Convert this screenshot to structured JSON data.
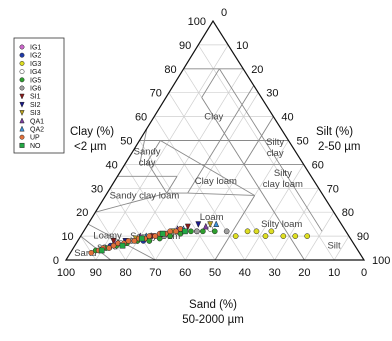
{
  "chart_data": {
    "type": "scatter",
    "subtype": "ternary",
    "axes": {
      "clay": {
        "label": "Clay (%)",
        "sublabel": "<2 µm",
        "ticks": [
          0,
          10,
          20,
          30,
          40,
          50,
          60,
          70,
          80,
          90,
          100
        ]
      },
      "silt": {
        "label": "Silt (%)",
        "sublabel": "2-50 µm",
        "ticks": [
          10,
          20,
          30,
          40,
          50,
          60,
          70,
          80,
          90,
          100
        ]
      },
      "sand": {
        "label": "Sand (%)",
        "sublabel": "50-2000 µm",
        "ticks": [
          100,
          90,
          80,
          70,
          60,
          50,
          40,
          30,
          20,
          10,
          0
        ]
      }
    },
    "apex_label": "0",
    "grid": true,
    "classes": [
      {
        "name": "Clay",
        "lines": [
          "Clay"
        ],
        "sand": 20,
        "silt": 20
      },
      {
        "name": "Silty clay",
        "lines": [
          "Silty",
          "clay"
        ],
        "sand": 6,
        "silt": 47
      },
      {
        "name": "Sandy clay",
        "lines": [
          "Sandy",
          "clay"
        ],
        "sand": 51,
        "silt": 6
      },
      {
        "name": "Silty clay loam",
        "lines": [
          "Silty",
          "clay loam"
        ],
        "sand": 10,
        "silt": 56
      },
      {
        "name": "Clay loam",
        "lines": [
          "Clay loam"
        ],
        "sand": 33,
        "silt": 34
      },
      {
        "name": "Sandy clay loam",
        "lines": [
          "Sandy clay loam"
        ],
        "sand": 60,
        "silt": 13
      },
      {
        "name": "Loam",
        "lines": [
          "Loam"
        ],
        "sand": 42,
        "silt": 40
      },
      {
        "name": "Silty loam",
        "lines": [
          "Silty loam"
        ],
        "sand": 20,
        "silt": 65
      },
      {
        "name": "Sandy loam",
        "lines": [
          "Sandy loam"
        ],
        "sand": 65,
        "silt": 25
      },
      {
        "name": "Loamy sand",
        "lines": [
          "Loamy",
          "sand"
        ],
        "sand": 82,
        "silt": 10
      },
      {
        "name": "Sand",
        "lines": [
          "Sand"
        ],
        "sand": 92,
        "silt": 5
      },
      {
        "name": "Silt",
        "lines": [
          "Silt"
        ],
        "sand": 7,
        "silt": 87
      }
    ],
    "legend": {
      "position": "top-left"
    },
    "series": [
      {
        "name": "IG1",
        "color": "#cc66cc",
        "marker": "circle",
        "points": [
          [
            80,
            13
          ],
          [
            72,
            20
          ],
          [
            65,
            25
          ],
          [
            56,
            32
          ]
        ]
      },
      {
        "name": "IG2",
        "color": "#1f3aa8",
        "marker": "circle",
        "points": [
          [
            82,
            12
          ],
          [
            70,
            22
          ],
          [
            60,
            30
          ],
          [
            50,
            38
          ]
        ]
      },
      {
        "name": "IG3",
        "color": "#dede22",
        "marker": "circle",
        "points": [
          [
            38,
            52
          ],
          [
            33,
            55
          ],
          [
            28,
            62
          ],
          [
            22,
            68
          ],
          [
            18,
            72
          ],
          [
            14,
            76
          ],
          [
            25,
            63
          ],
          [
            30,
            58
          ]
        ]
      },
      {
        "name": "IG4",
        "color": "#ffffff",
        "marker": "circle",
        "points": [
          [
            78,
            15
          ],
          [
            68,
            24
          ],
          [
            55,
            33
          ],
          [
            45,
            42
          ]
        ]
      },
      {
        "name": "IG5",
        "color": "#2e9e2e",
        "marker": "circle",
        "points": [
          [
            88,
            8
          ],
          [
            84,
            11
          ],
          [
            80,
            14
          ],
          [
            76,
            17
          ],
          [
            72,
            20
          ],
          [
            68,
            24
          ],
          [
            64,
            27
          ],
          [
            60,
            30
          ],
          [
            56,
            33
          ],
          [
            52,
            36
          ],
          [
            48,
            40
          ],
          [
            44,
            44
          ]
        ]
      },
      {
        "name": "IG6",
        "color": "#a0a0a0",
        "marker": "circle",
        "points": [
          [
            74,
            18
          ],
          [
            62,
            28
          ],
          [
            50,
            38
          ],
          [
            40,
            48
          ]
        ]
      },
      {
        "name": "SI1",
        "color": "#8b1a1a",
        "marker": "triangle-down",
        "points": [
          [
            80,
            12
          ],
          [
            66,
            24
          ],
          [
            52,
            34
          ]
        ]
      },
      {
        "name": "SI2",
        "color": "#1a1a8b",
        "marker": "triangle-down",
        "points": [
          [
            76,
            16
          ],
          [
            62,
            27
          ],
          [
            48,
            37
          ]
        ]
      },
      {
        "name": "SI3",
        "color": "#b8a020",
        "marker": "triangle-down",
        "points": [
          [
            72,
            19
          ],
          [
            58,
            30
          ],
          [
            44,
            41
          ]
        ]
      },
      {
        "name": "QA1",
        "color": "#7a3d9e",
        "marker": "triangle-up",
        "points": [
          [
            70,
            20
          ],
          [
            56,
            31
          ],
          [
            46,
            40
          ]
        ]
      },
      {
        "name": "QA2",
        "color": "#3a8fd6",
        "marker": "triangle-up",
        "points": [
          [
            68,
            22
          ],
          [
            54,
            33
          ],
          [
            42,
            43
          ]
        ]
      },
      {
        "name": "UP",
        "color": "#e0703a",
        "marker": "circle",
        "points": [
          [
            90,
            7
          ],
          [
            87,
            9
          ],
          [
            85,
            10
          ],
          [
            83,
            12
          ],
          [
            81,
            13
          ],
          [
            79,
            14
          ],
          [
            77,
            16
          ],
          [
            75,
            17
          ],
          [
            73,
            19
          ],
          [
            71,
            20
          ],
          [
            69,
            22
          ],
          [
            67,
            23
          ],
          [
            65,
            25
          ],
          [
            63,
            26
          ],
          [
            61,
            28
          ],
          [
            59,
            29
          ],
          [
            57,
            31
          ],
          [
            55,
            32
          ]
        ]
      },
      {
        "name": "NO",
        "color": "#22a844",
        "marker": "square",
        "points": [
          [
            86,
            10
          ],
          [
            78,
            16
          ],
          [
            70,
            21
          ],
          [
            62,
            27
          ],
          [
            54,
            34
          ]
        ]
      }
    ]
  }
}
